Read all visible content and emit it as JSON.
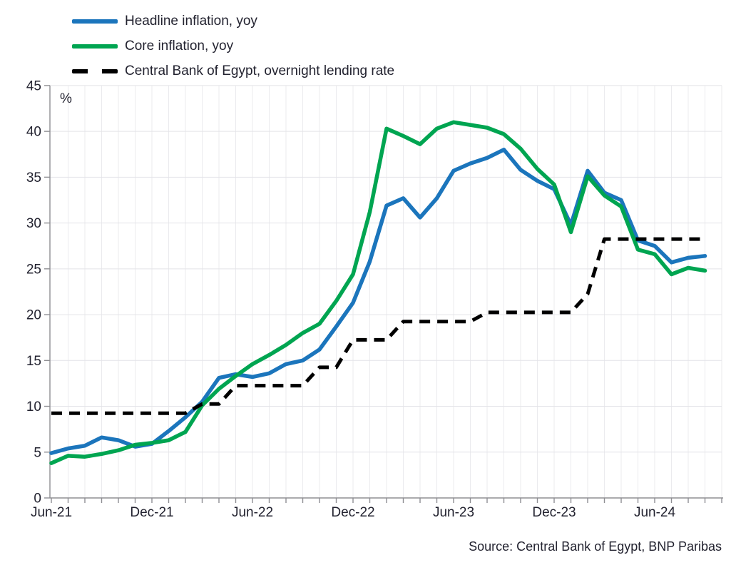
{
  "chart_data": {
    "type": "line",
    "title": "",
    "unit_label": "%",
    "source": "Source: Central Bank of Egypt, BNP Paribas",
    "x": [
      "Jun-21",
      "Jul-21",
      "Aug-21",
      "Sep-21",
      "Oct-21",
      "Nov-21",
      "Dec-21",
      "Jan-22",
      "Feb-22",
      "Mar-22",
      "Apr-22",
      "May-22",
      "Jun-22",
      "Jul-22",
      "Aug-22",
      "Sep-22",
      "Oct-22",
      "Nov-22",
      "Dec-22",
      "Jan-23",
      "Feb-23",
      "Mar-23",
      "Apr-23",
      "May-23",
      "Jun-23",
      "Jul-23",
      "Aug-23",
      "Sep-23",
      "Oct-23",
      "Nov-23",
      "Dec-23",
      "Jan-24",
      "Feb-24",
      "Mar-24",
      "Apr-24",
      "May-24",
      "Jun-24",
      "Jul-24",
      "Aug-24",
      "Sep-24"
    ],
    "x_ticks": [
      {
        "label": "Jun-21",
        "month_index": 0
      },
      {
        "label": "Dec-21",
        "month_index": 6
      },
      {
        "label": "Jun-22",
        "month_index": 12
      },
      {
        "label": "Dec-22",
        "month_index": 18
      },
      {
        "label": "Jun-23",
        "month_index": 24
      },
      {
        "label": "Dec-23",
        "month_index": 30
      },
      {
        "label": "Jun-24",
        "month_index": 36
      }
    ],
    "ylim": [
      0,
      45
    ],
    "y_ticks": [
      0,
      5,
      10,
      15,
      20,
      25,
      30,
      35,
      40,
      45
    ],
    "grid": true,
    "legend_position": "top-left",
    "series": [
      {
        "name": "Headline inflation, yoy",
        "color": "#1b75bc",
        "style": "solid",
        "values": [
          4.9,
          5.4,
          5.7,
          6.6,
          6.3,
          5.6,
          5.9,
          7.3,
          8.8,
          10.5,
          13.1,
          13.5,
          13.2,
          13.6,
          14.6,
          15.0,
          16.2,
          18.7,
          21.3,
          25.8,
          31.9,
          32.7,
          30.6,
          32.7,
          35.7,
          36.5,
          37.1,
          38.0,
          35.8,
          34.6,
          33.7,
          29.8,
          35.7,
          33.3,
          32.5,
          28.1,
          27.5,
          25.7,
          26.2,
          26.4
        ]
      },
      {
        "name": "Core inflation, yoy",
        "color": "#00a551",
        "style": "solid",
        "values": [
          3.8,
          4.6,
          4.5,
          4.8,
          5.2,
          5.8,
          6.0,
          6.3,
          7.2,
          10.1,
          11.9,
          13.3,
          14.6,
          15.6,
          16.7,
          18.0,
          19.0,
          21.5,
          24.4,
          31.2,
          40.3,
          39.5,
          38.6,
          40.3,
          41.0,
          40.7,
          40.4,
          39.7,
          38.1,
          35.9,
          34.2,
          29.0,
          35.1,
          33.0,
          31.8,
          27.1,
          26.6,
          24.4,
          25.1,
          24.8
        ]
      },
      {
        "name": "Central Bank of Egypt, overnight lending rate",
        "color": "#000000",
        "style": "dashed",
        "values": [
          9.25,
          9.25,
          9.25,
          9.25,
          9.25,
          9.25,
          9.25,
          9.25,
          9.25,
          10.25,
          10.25,
          12.25,
          12.25,
          12.25,
          12.25,
          12.25,
          14.25,
          14.25,
          17.25,
          17.25,
          17.25,
          19.25,
          19.25,
          19.25,
          19.25,
          19.25,
          20.25,
          20.25,
          20.25,
          20.25,
          20.25,
          20.25,
          22.25,
          28.25,
          28.25,
          28.25,
          28.25,
          28.25,
          28.25,
          28.25
        ]
      }
    ],
    "layout": {
      "colors": {
        "grid_horizontal": "#e3e3e8",
        "grid_vertical": "#ebebee",
        "axis": "#8f8f93",
        "text": "#232330"
      }
    }
  }
}
